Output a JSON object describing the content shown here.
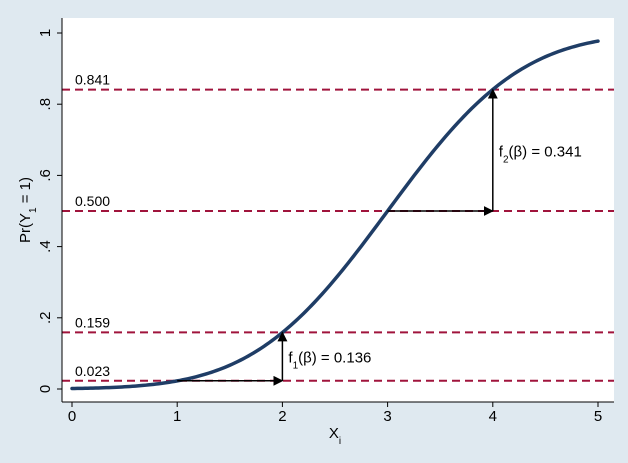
{
  "chart_data": {
    "type": "line",
    "title": "",
    "xlabel": "Xi",
    "ylabel": "Pr(Y1 = 1)",
    "xlim": [
      0,
      5
    ],
    "ylim": [
      0,
      1
    ],
    "x_ticks": [
      "0",
      "1",
      "2",
      "3",
      "4",
      "5"
    ],
    "y_ticks": [
      "0",
      ".2",
      ".4",
      ".6",
      ".8",
      "1"
    ],
    "grid": false,
    "series": [
      {
        "curve": "normal-cdf",
        "x": [
          0,
          0.25,
          0.5,
          0.75,
          1,
          1.25,
          1.5,
          1.75,
          2,
          2.25,
          2.5,
          2.75,
          3,
          3.25,
          3.5,
          3.75,
          4,
          4.25,
          4.5,
          4.75,
          5
        ],
        "y": [
          0.001,
          0.003,
          0.006,
          0.012,
          0.023,
          0.04,
          0.067,
          0.106,
          0.159,
          0.227,
          0.309,
          0.401,
          0.5,
          0.599,
          0.691,
          0.773,
          0.841,
          0.894,
          0.933,
          0.96,
          0.977
        ],
        "color": "#1f3d66"
      }
    ],
    "reference_lines": [
      {
        "y": 0.023,
        "label": "0.023"
      },
      {
        "y": 0.159,
        "label": "0.159"
      },
      {
        "y": 0.5,
        "label": "0.500"
      },
      {
        "y": 0.841,
        "label": "0.841"
      }
    ],
    "reference_line_color": "#a0143c",
    "annotations": [
      {
        "label_base": "f",
        "label_sub": "1",
        "label_rest": "(β) = 0.136",
        "from": [
          1,
          0.023
        ],
        "corner": [
          2,
          0.023
        ],
        "to": [
          2,
          0.159
        ]
      },
      {
        "label_base": "f",
        "label_sub": "2",
        "label_rest": "(β) = 0.341",
        "from": [
          3,
          0.5
        ],
        "corner": [
          4,
          0.5
        ],
        "to": [
          4,
          0.841
        ]
      }
    ],
    "colors": {
      "background": "#dfe9f0",
      "plot_background": "#ffffff",
      "arrow": "#000000"
    }
  }
}
